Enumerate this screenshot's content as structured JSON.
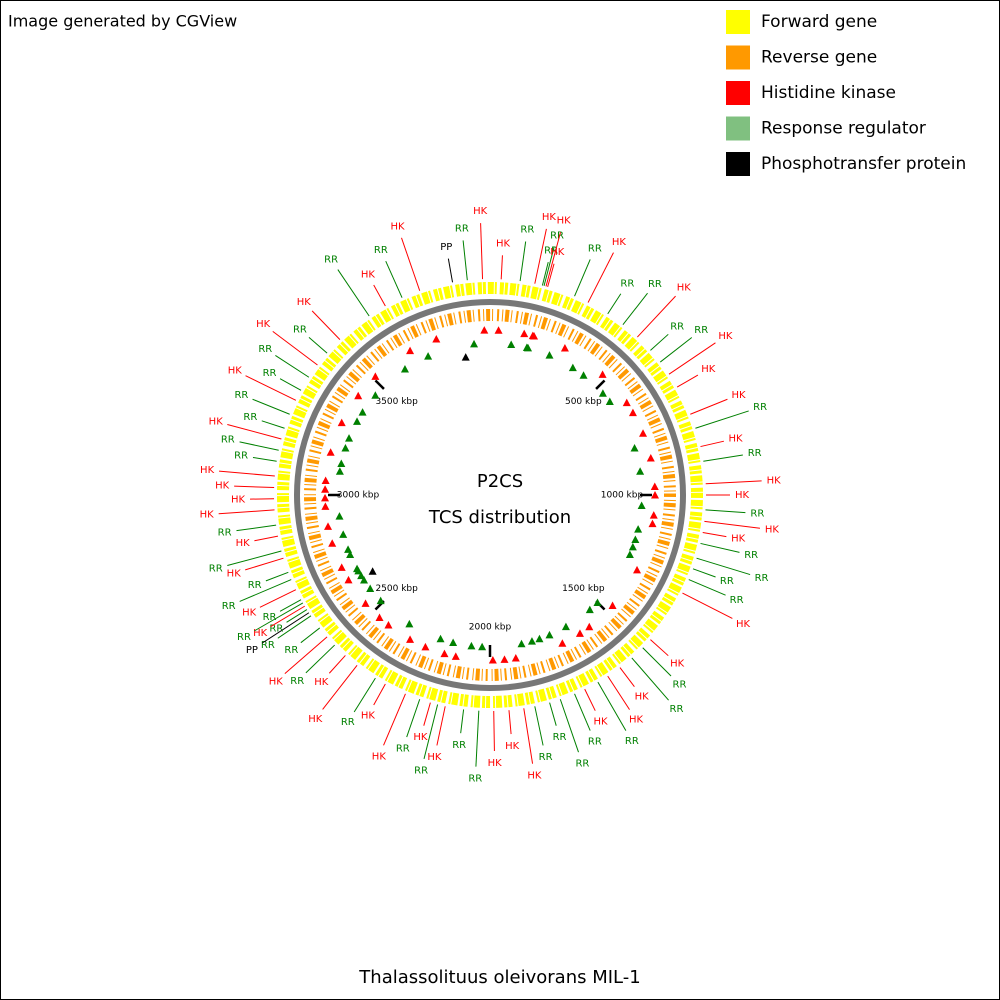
{
  "header": {
    "note": "Image generated by CGView"
  },
  "legend": [
    {
      "label": "Forward gene",
      "color": "#ffff00"
    },
    {
      "label": "Reverse gene",
      "color": "#ff9900"
    },
    {
      "label": "Histidine kinase",
      "color": "#ff0000"
    },
    {
      "label": "Response regulator",
      "color": "#80c080"
    },
    {
      "label": "Phosphotransfer protein",
      "color": "#000000"
    }
  ],
  "chart_data": {
    "type": "circular-map",
    "title": "P2CS",
    "subtitle": "TCS distribution",
    "caption": "Thalassolituus oleivorans MIL-1",
    "xlim": [
      0,
      4000
    ],
    "xticks": [
      {
        "value": 500,
        "label": "500 kbp"
      },
      {
        "value": 1000,
        "label": "1000 kbp"
      },
      {
        "value": 1500,
        "label": "1500 kbp"
      },
      {
        "value": 2000,
        "label": "2000 kbp"
      },
      {
        "value": 2500,
        "label": "2500 kbp"
      },
      {
        "value": 3000,
        "label": "3000 kbp"
      },
      {
        "value": 3500,
        "label": "3500 kbp"
      }
    ],
    "label_colors": {
      "HK": "#ff0000",
      "RR": "#008000",
      "PP": "#000000"
    },
    "features": [
      {
        "label": "PP",
        "position": 3889
      },
      {
        "label": "RR",
        "position": 3933
      },
      {
        "label": "HK",
        "position": 3978
      },
      {
        "label": "HK",
        "position": 33
      },
      {
        "label": "RR",
        "position": 89
      },
      {
        "label": "HK",
        "position": 133
      },
      {
        "label": "RR",
        "position": 156
      },
      {
        "label": "RR",
        "position": 161
      },
      {
        "label": "HK",
        "position": 167
      },
      {
        "label": "HK",
        "position": 172
      },
      {
        "label": "RR",
        "position": 256
      },
      {
        "label": "HK",
        "position": 300
      },
      {
        "label": "RR",
        "position": 367
      },
      {
        "label": "RR",
        "position": 422
      },
      {
        "label": "HK",
        "position": 478
      },
      {
        "label": "RR",
        "position": 533
      },
      {
        "label": "RR",
        "position": 578
      },
      {
        "label": "HK",
        "position": 622
      },
      {
        "label": "HK",
        "position": 667
      },
      {
        "label": "HK",
        "position": 756
      },
      {
        "label": "RR",
        "position": 800
      },
      {
        "label": "HK",
        "position": 856
      },
      {
        "label": "RR",
        "position": 900
      },
      {
        "label": "HK",
        "position": 967
      },
      {
        "label": "HK",
        "position": 1000
      },
      {
        "label": "RR",
        "position": 1044
      },
      {
        "label": "HK",
        "position": 1078
      },
      {
        "label": "HK",
        "position": 1111
      },
      {
        "label": "RR",
        "position": 1144
      },
      {
        "label": "RR",
        "position": 1189
      },
      {
        "label": "RR",
        "position": 1222
      },
      {
        "label": "RR",
        "position": 1256
      },
      {
        "label": "HK",
        "position": 1300
      },
      {
        "label": "HK",
        "position": 1467
      },
      {
        "label": "RR",
        "position": 1500
      },
      {
        "label": "RR",
        "position": 1544
      },
      {
        "label": "HK",
        "position": 1589
      },
      {
        "label": "HK",
        "position": 1633
      },
      {
        "label": "RR",
        "position": 1667
      },
      {
        "label": "HK",
        "position": 1711
      },
      {
        "label": "RR",
        "position": 1744
      },
      {
        "label": "RR",
        "position": 1789
      },
      {
        "label": "RR",
        "position": 1822
      },
      {
        "label": "RR",
        "position": 1867
      },
      {
        "label": "HK",
        "position": 1900
      },
      {
        "label": "HK",
        "position": 1944
      },
      {
        "label": "HK",
        "position": 1989
      },
      {
        "label": "RR",
        "position": 2033
      },
      {
        "label": "RR",
        "position": 2078
      },
      {
        "label": "HK",
        "position": 2133
      },
      {
        "label": "RR",
        "position": 2156
      },
      {
        "label": "HK",
        "position": 2178
      },
      {
        "label": "RR",
        "position": 2211
      },
      {
        "label": "HK",
        "position": 2256
      },
      {
        "label": "HK",
        "position": 2322
      },
      {
        "label": "RR",
        "position": 2356
      },
      {
        "label": "HK",
        "position": 2422
      },
      {
        "label": "HK",
        "position": 2467
      },
      {
        "label": "RR",
        "position": 2511
      },
      {
        "label": "HK",
        "position": 2544
      },
      {
        "label": "RR",
        "position": 2578
      },
      {
        "label": "RR",
        "position": 2622
      },
      {
        "label": "PP",
        "position": 2633
      },
      {
        "label": "RR",
        "position": 2644
      },
      {
        "label": "HK",
        "position": 2656
      },
      {
        "label": "RR",
        "position": 2667
      },
      {
        "label": "RR",
        "position": 2678
      },
      {
        "label": "HK",
        "position": 2711
      },
      {
        "label": "RR",
        "position": 2744
      },
      {
        "label": "RR",
        "position": 2767
      },
      {
        "label": "HK",
        "position": 2811
      },
      {
        "label": "RR",
        "position": 2833
      },
      {
        "label": "HK",
        "position": 2878
      },
      {
        "label": "RR",
        "position": 2911
      },
      {
        "label": "HK",
        "position": 2956
      },
      {
        "label": "HK",
        "position": 2989
      },
      {
        "label": "HK",
        "position": 3022
      },
      {
        "label": "HK",
        "position": 3056
      },
      {
        "label": "RR",
        "position": 3100
      },
      {
        "label": "RR",
        "position": 3133
      },
      {
        "label": "HK",
        "position": 3167
      },
      {
        "label": "RR",
        "position": 3200
      },
      {
        "label": "RR",
        "position": 3244
      },
      {
        "label": "HK",
        "position": 3289
      },
      {
        "label": "RR",
        "position": 3322
      },
      {
        "label": "RR",
        "position": 3367
      },
      {
        "label": "HK",
        "position": 3411
      },
      {
        "label": "RR",
        "position": 3456
      },
      {
        "label": "HK",
        "position": 3511
      },
      {
        "label": "RR",
        "position": 3622
      },
      {
        "label": "HK",
        "position": 3678
      },
      {
        "label": "RR",
        "position": 3733
      },
      {
        "label": "HK",
        "position": 3789
      }
    ]
  }
}
